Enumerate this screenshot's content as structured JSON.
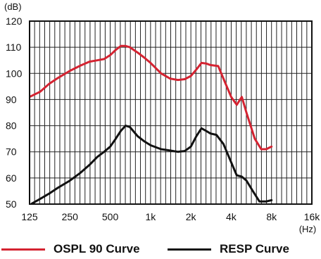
{
  "chart_data": {
    "type": "line",
    "x_scale": "log2",
    "xlim": [
      125,
      16000
    ],
    "ylim": [
      50,
      120
    ],
    "y_unit": "(dB)",
    "x_unit": "(Hz)",
    "grid": true,
    "y_ticks": [
      "50",
      "60",
      "70",
      "80",
      "90",
      "100",
      "110",
      "120"
    ],
    "x_ticks": [
      {
        "value": 125,
        "label": "125"
      },
      {
        "value": 250,
        "label": "250"
      },
      {
        "value": 500,
        "label": "500"
      },
      {
        "value": 1000,
        "label": "1k"
      },
      {
        "value": 2000,
        "label": "2k"
      },
      {
        "value": 4000,
        "label": "4k"
      },
      {
        "value": 8000,
        "label": "8k"
      },
      {
        "value": 16000,
        "label": "16k"
      }
    ],
    "legend_position": "bottom",
    "series": [
      {
        "name": "OSPL 90 Curve",
        "color": "#d42331",
        "points": [
          [
            100,
            89
          ],
          [
            125,
            91
          ],
          [
            150,
            93
          ],
          [
            175,
            96
          ],
          [
            200,
            98
          ],
          [
            250,
            101
          ],
          [
            300,
            103
          ],
          [
            350,
            104.5
          ],
          [
            400,
            105
          ],
          [
            450,
            105.5
          ],
          [
            500,
            107
          ],
          [
            550,
            109
          ],
          [
            600,
            110.5
          ],
          [
            650,
            110.5
          ],
          [
            700,
            110
          ],
          [
            800,
            108
          ],
          [
            900,
            106
          ],
          [
            1000,
            104
          ],
          [
            1200,
            100
          ],
          [
            1400,
            98
          ],
          [
            1600,
            97.5
          ],
          [
            1800,
            97.8
          ],
          [
            2000,
            99
          ],
          [
            2200,
            101.5
          ],
          [
            2400,
            104
          ],
          [
            2600,
            103.8
          ],
          [
            2800,
            103.2
          ],
          [
            3200,
            102.8
          ],
          [
            3500,
            98
          ],
          [
            4000,
            91
          ],
          [
            4400,
            88
          ],
          [
            4800,
            91
          ],
          [
            5200,
            85
          ],
          [
            6000,
            75
          ],
          [
            6700,
            71
          ],
          [
            7300,
            71
          ],
          [
            8000,
            72
          ]
        ]
      },
      {
        "name": "RESP Curve",
        "color": "#111111",
        "points": [
          [
            130,
            50.2
          ],
          [
            150,
            52
          ],
          [
            175,
            54
          ],
          [
            200,
            56
          ],
          [
            250,
            59
          ],
          [
            300,
            62
          ],
          [
            350,
            65
          ],
          [
            400,
            68
          ],
          [
            450,
            70
          ],
          [
            500,
            72
          ],
          [
            550,
            75
          ],
          [
            600,
            78
          ],
          [
            650,
            80
          ],
          [
            700,
            79.5
          ],
          [
            800,
            76
          ],
          [
            900,
            74
          ],
          [
            1000,
            72.5
          ],
          [
            1200,
            71
          ],
          [
            1400,
            70.5
          ],
          [
            1600,
            70
          ],
          [
            1800,
            70.3
          ],
          [
            2000,
            72
          ],
          [
            2200,
            76
          ],
          [
            2400,
            79
          ],
          [
            2600,
            78
          ],
          [
            2800,
            77
          ],
          [
            3100,
            76.5
          ],
          [
            3500,
            73
          ],
          [
            4000,
            66
          ],
          [
            4400,
            61
          ],
          [
            4800,
            60.5
          ],
          [
            5200,
            59
          ],
          [
            5800,
            55
          ],
          [
            6500,
            51
          ],
          [
            7300,
            51
          ],
          [
            8000,
            51.5
          ]
        ]
      }
    ]
  }
}
